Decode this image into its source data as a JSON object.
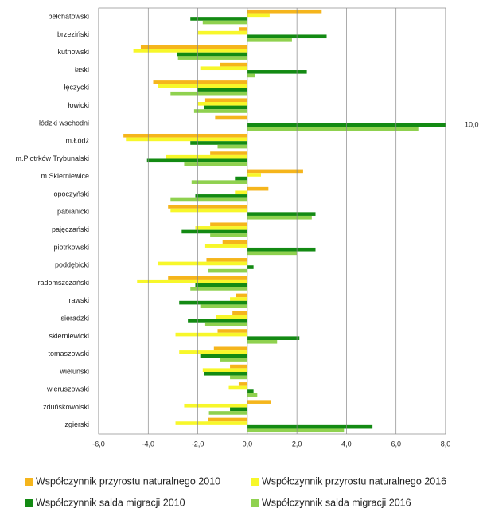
{
  "chart_data": {
    "type": "bar",
    "orientation": "horizontal",
    "categories": [
      "bełchatowski",
      "brzeziński",
      "kutnowski",
      "łaski",
      "łęczycki",
      "łowicki",
      "łódzki wschodni",
      "m.Łódź",
      "m.Piotrków Trybunalski",
      "m.Skierniewice",
      "opoczyński",
      "pabianicki",
      "pajęczański",
      "piotrkowski",
      "poddębicki",
      "radomszczański",
      "rawski",
      "sieradzki",
      "skierniewicki",
      "tomaszowski",
      "wieluński",
      "wieruszowski",
      "zduńskowolski",
      "zgierski"
    ],
    "series": [
      {
        "name": "Współczynnik przyrostu naturalnego 2010",
        "color": "#f5b51c",
        "values": [
          3.0,
          -0.35,
          -4.3,
          -1.1,
          -3.8,
          -1.7,
          -1.3,
          -5.0,
          -1.5,
          2.25,
          0.85,
          -3.2,
          -1.5,
          -1.0,
          -1.65,
          -3.2,
          -0.45,
          -0.6,
          -1.2,
          -1.35,
          -0.7,
          -0.35,
          0.95,
          -1.6
        ]
      },
      {
        "name": "Współczynnik przyrostu naturalnego 2016",
        "color": "#f7f72a",
        "values": [
          0.9,
          -2.0,
          -4.6,
          -1.9,
          -3.6,
          -2.0,
          0,
          -4.9,
          -3.3,
          0.55,
          -0.5,
          -3.1,
          -2.1,
          -1.7,
          -3.6,
          -4.45,
          -0.7,
          -1.25,
          -2.9,
          -2.75,
          -1.8,
          -0.75,
          -2.55,
          -2.9
        ]
      },
      {
        "name": "Współczynnik salda migracji 2010",
        "color": "#138a13",
        "values": [
          -2.3,
          3.2,
          -2.85,
          2.4,
          -2.05,
          -1.75,
          10.0,
          -2.3,
          -4.05,
          -0.5,
          -2.1,
          2.75,
          -2.65,
          2.75,
          0.25,
          -2.1,
          -2.75,
          -2.4,
          2.1,
          -1.9,
          -1.75,
          0.25,
          -0.7,
          5.05
        ],
        "value_labels": [
          null,
          null,
          null,
          null,
          null,
          null,
          "10,0",
          null,
          null,
          null,
          null,
          null,
          null,
          null,
          null,
          null,
          null,
          null,
          null,
          null,
          null,
          null,
          null,
          null
        ]
      },
      {
        "name": "Współczynnik salda migracji 2016",
        "color": "#8fd14f",
        "values": [
          -1.8,
          1.8,
          -2.8,
          0.3,
          -3.1,
          -2.15,
          6.9,
          -1.2,
          -2.55,
          -2.25,
          -3.1,
          2.6,
          -1.5,
          2.0,
          -1.6,
          -2.3,
          -1.9,
          -1.7,
          1.2,
          -1.1,
          -0.7,
          0.4,
          -1.55,
          3.9
        ]
      }
    ],
    "xlim": [
      -6,
      8
    ],
    "xticks": [
      {
        "value": -6,
        "label": "-6,0"
      },
      {
        "value": -4,
        "label": "-4,0"
      },
      {
        "value": -2,
        "label": "-2,0"
      },
      {
        "value": 0,
        "label": "0,0"
      },
      {
        "value": 2,
        "label": "2,0"
      },
      {
        "value": 4,
        "label": "4,0"
      },
      {
        "value": 6,
        "label": "6,0"
      },
      {
        "value": 8,
        "label": "8,0"
      }
    ],
    "grid": true
  }
}
